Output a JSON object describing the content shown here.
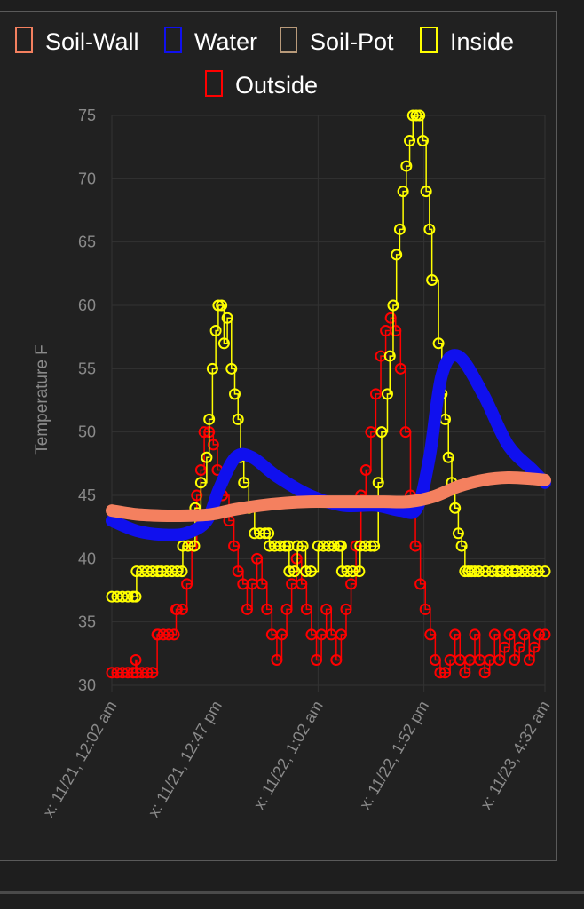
{
  "chart_data": {
    "type": "line",
    "ylabel": "Temperature F",
    "xlabel": "",
    "ylim": [
      30,
      75
    ],
    "y_ticks": [
      30,
      35,
      40,
      45,
      50,
      55,
      60,
      65,
      70,
      75
    ],
    "x_tick_labels": [
      "x: 11/21, 12:02 am",
      "x: 11/21, 12:47 pm",
      "x: 11/22, 1:02 am",
      "x: 11/22, 1:52 pm",
      "x: 11/23, 4:32 am"
    ],
    "x_tick_hours": [
      0,
      12.75,
      25,
      37.83,
      52.5
    ],
    "x_unit": "hours since 11/21 12:02 am",
    "grid": true,
    "legend_position": "top",
    "series": [
      {
        "name": "Soil-Wall",
        "color": "#f4805f",
        "style": "thick",
        "x": [
          0,
          3,
          6,
          9,
          12,
          15,
          18,
          21,
          24,
          27,
          30,
          33,
          36,
          39,
          42,
          45,
          48,
          51,
          52.5
        ],
        "y": [
          43.8,
          43.5,
          43.4,
          43.4,
          43.5,
          43.9,
          44.2,
          44.4,
          44.5,
          44.5,
          44.5,
          44.5,
          44.5,
          44.9,
          45.7,
          46.2,
          46.4,
          46.3,
          46.2
        ]
      },
      {
        "name": "Water",
        "color": "#1010ee",
        "style": "thick",
        "x": [
          0,
          3,
          6,
          9,
          11.5,
          13,
          15,
          17,
          20,
          24,
          28,
          32,
          35,
          37,
          38.5,
          40,
          42,
          45,
          48,
          51,
          52.5
        ],
        "y": [
          43.0,
          42.2,
          41.9,
          42.0,
          43.0,
          45.5,
          48.0,
          48.0,
          46.5,
          45.0,
          44.2,
          44.2,
          43.8,
          44.0,
          48.0,
          54.5,
          56.0,
          53.0,
          49.0,
          47.0,
          46.0
        ]
      },
      {
        "name": "Soil-Pot",
        "color": "#b89a7a",
        "style": "line",
        "x": [],
        "y": []
      },
      {
        "name": "Inside",
        "color": "#ffff00",
        "style": "circles",
        "x": [
          0,
          2.9,
          3,
          6,
          8.5,
          8.6,
          10,
          10.1,
          10.8,
          11.5,
          11.8,
          12.2,
          12.6,
          12.9,
          13.3,
          13.6,
          14.0,
          14.5,
          14.9,
          15.3,
          15.6,
          16.0,
          16.6,
          17.3,
          19.0,
          19.1,
          21.4,
          21.5,
          22.5,
          23.5,
          25.0,
          27.8,
          27.9,
          30.0,
          30.1,
          31.8,
          32.3,
          32.7,
          33.4,
          33.7,
          34.1,
          34.5,
          34.9,
          35.3,
          35.7,
          36.1,
          36.5,
          36.9,
          37.3,
          37.7,
          38.1,
          38.5,
          38.8,
          39.6,
          40.0,
          40.4,
          40.8,
          41.2,
          41.6,
          42.0,
          42.4,
          42.8,
          43.2,
          43.6,
          44.0,
          44.5,
          45.3,
          46.1,
          47.2,
          47.3,
          49.0,
          49.1,
          52.5
        ],
        "y": [
          37,
          37,
          39,
          39,
          39,
          41,
          41,
          44,
          46,
          48,
          51,
          55,
          58,
          60,
          60,
          57,
          59,
          55,
          53,
          51,
          48,
          46,
          44,
          42,
          42,
          41,
          41,
          39,
          41,
          39,
          41,
          41,
          39,
          39,
          41,
          41,
          46,
          50,
          53,
          56,
          60,
          64,
          66,
          69,
          71,
          73,
          75,
          75,
          75,
          73,
          69,
          66,
          62,
          57,
          53,
          51,
          48,
          46,
          44,
          42,
          41,
          39,
          39,
          39,
          39,
          39,
          39,
          39,
          39,
          39,
          39,
          39,
          39
        ]
      },
      {
        "name": "Outside",
        "color": "#ff0000",
        "style": "circles",
        "x": [
          0,
          2.9,
          3,
          5.5,
          5.6,
          7.8,
          7.9,
          9.1,
          9.7,
          10.3,
          10.8,
          11.2,
          11.8,
          12.3,
          12.8,
          13.4,
          14.2,
          14.8,
          15.3,
          15.9,
          16.4,
          17.0,
          17.6,
          18.2,
          18.8,
          19.4,
          20.0,
          20.6,
          21.2,
          21.8,
          22.4,
          23.0,
          23.6,
          24.2,
          24.8,
          25.4,
          26.0,
          26.6,
          27.2,
          27.8,
          28.4,
          29.0,
          29.6,
          30.2,
          30.8,
          31.4,
          32.0,
          32.6,
          33.2,
          33.8,
          34.4,
          35.0,
          35.6,
          36.2,
          36.8,
          37.4,
          38.0,
          38.6,
          39.2,
          39.8,
          40.4,
          41.0,
          41.6,
          42.2,
          42.8,
          43.4,
          44.0,
          44.6,
          45.2,
          45.8,
          46.4,
          47.0,
          47.6,
          48.2,
          48.8,
          49.4,
          50.0,
          50.6,
          51.2,
          51.8,
          52.5
        ],
        "y": [
          31,
          32,
          31,
          34,
          34,
          36,
          36,
          38,
          41,
          45,
          47,
          50,
          50,
          49,
          47,
          45,
          43,
          41,
          39,
          38,
          36,
          38,
          40,
          38,
          36,
          34,
          32,
          34,
          36,
          38,
          40,
          38,
          36,
          34,
          32,
          34,
          36,
          34,
          32,
          34,
          36,
          38,
          41,
          45,
          47,
          50,
          53,
          56,
          58,
          59,
          58,
          55,
          50,
          45,
          41,
          38,
          36,
          34,
          32,
          31,
          31,
          32,
          34,
          32,
          31,
          32,
          34,
          32,
          31,
          32,
          34,
          32,
          33,
          34,
          32,
          33,
          34,
          32,
          33,
          34,
          34
        ]
      }
    ]
  }
}
